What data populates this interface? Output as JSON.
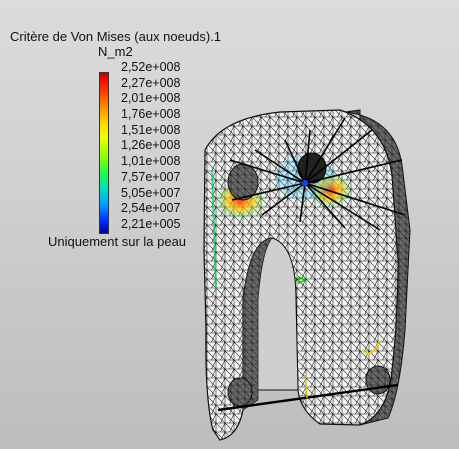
{
  "legend": {
    "title": "Critère de Von Mises (aux noeuds).1",
    "unit": "N_m2",
    "values": [
      "2,52e+008",
      "2,27e+008",
      "2,01e+008",
      "1,76e+008",
      "1,51e+008",
      "1,26e+008",
      "1,01e+008",
      "7,57e+007",
      "5,05e+007",
      "2,54e+007",
      "2,21e+005"
    ],
    "note": "Uniquement sur la peau",
    "colors": {
      "max": "#c00000",
      "min": "#0000a0"
    }
  },
  "model": {
    "icon": "fea-mesh-part",
    "mesh_color": "#000000",
    "surface_color": "#f4f4f4"
  }
}
